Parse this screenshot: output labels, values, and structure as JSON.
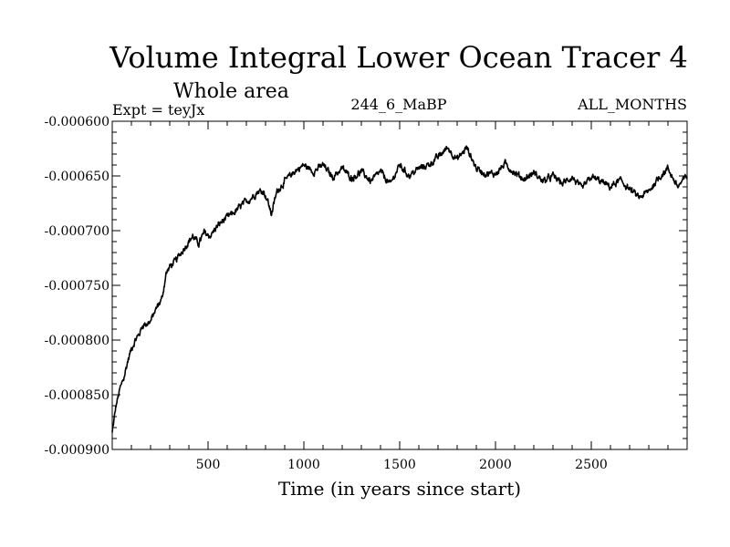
{
  "chart_data": {
    "type": "line",
    "title": "Volume Integral Lower Ocean Tracer 4",
    "subtitle": "Whole area",
    "expt_label": "Expt = teyJx",
    "run_label": "244_6_MaBP",
    "months_label": "ALL_MONTHS",
    "xlabel": "Time (in years since start)",
    "ylabel": "",
    "xlim": [
      0,
      3000
    ],
    "ylim": [
      -0.0009,
      -0.0006
    ],
    "xticks": [
      500,
      1000,
      1500,
      2000,
      2500
    ],
    "xtick_labels": [
      "500",
      "1000",
      "1500",
      "2000",
      "2500"
    ],
    "yticks": [
      -0.0009,
      -0.00085,
      -0.0008,
      -0.00075,
      -0.0007,
      -0.00065,
      -0.0006
    ],
    "ytick_labels": [
      "-0.000900",
      "-0.000850",
      "-0.000800",
      "-0.000750",
      "-0.000700",
      "-0.000650",
      "-0.000600"
    ],
    "series": [
      {
        "name": "Tracer 4",
        "color": "#000000",
        "x": [
          0,
          20,
          40,
          60,
          80,
          100,
          120,
          140,
          160,
          180,
          200,
          220,
          240,
          260,
          280,
          300,
          330,
          360,
          390,
          420,
          450,
          480,
          510,
          540,
          570,
          600,
          640,
          680,
          720,
          760,
          790,
          810,
          830,
          860,
          900,
          950,
          1000,
          1050,
          1100,
          1150,
          1200,
          1250,
          1300,
          1350,
          1400,
          1450,
          1500,
          1550,
          1600,
          1650,
          1700,
          1750,
          1800,
          1850,
          1900,
          1950,
          2000,
          2050,
          2100,
          2150,
          2200,
          2250,
          2300,
          2350,
          2400,
          2450,
          2500,
          2550,
          2600,
          2650,
          2700,
          2750,
          2800,
          2850,
          2900,
          2950,
          3000
        ],
        "y": [
          -0.000885,
          -0.00086,
          -0.000845,
          -0.000835,
          -0.00082,
          -0.000808,
          -0.0008,
          -0.000795,
          -0.000786,
          -0.000785,
          -0.000783,
          -0.000775,
          -0.000768,
          -0.000762,
          -0.00074,
          -0.000733,
          -0.000728,
          -0.00072,
          -0.000712,
          -0.000705,
          -0.000712,
          -0.000702,
          -0.000705,
          -0.000698,
          -0.000692,
          -0.000688,
          -0.000683,
          -0.000676,
          -0.000671,
          -0.000664,
          -0.000664,
          -0.000672,
          -0.000685,
          -0.000664,
          -0.000655,
          -0.000646,
          -0.00064,
          -0.000646,
          -0.00064,
          -0.000651,
          -0.000643,
          -0.000652,
          -0.000646,
          -0.000655,
          -0.000646,
          -0.000658,
          -0.00064,
          -0.00065,
          -0.000643,
          -0.00064,
          -0.000633,
          -0.000624,
          -0.000635,
          -0.000624,
          -0.000643,
          -0.000648,
          -0.000648,
          -0.000639,
          -0.000647,
          -0.000653,
          -0.000647,
          -0.000655,
          -0.00065,
          -0.000657,
          -0.000651,
          -0.000662,
          -0.000651,
          -0.000655,
          -0.00066,
          -0.000654,
          -0.000662,
          -0.00067,
          -0.000664,
          -0.000652,
          -0.000643,
          -0.00066,
          -0.00065
        ]
      }
    ]
  }
}
